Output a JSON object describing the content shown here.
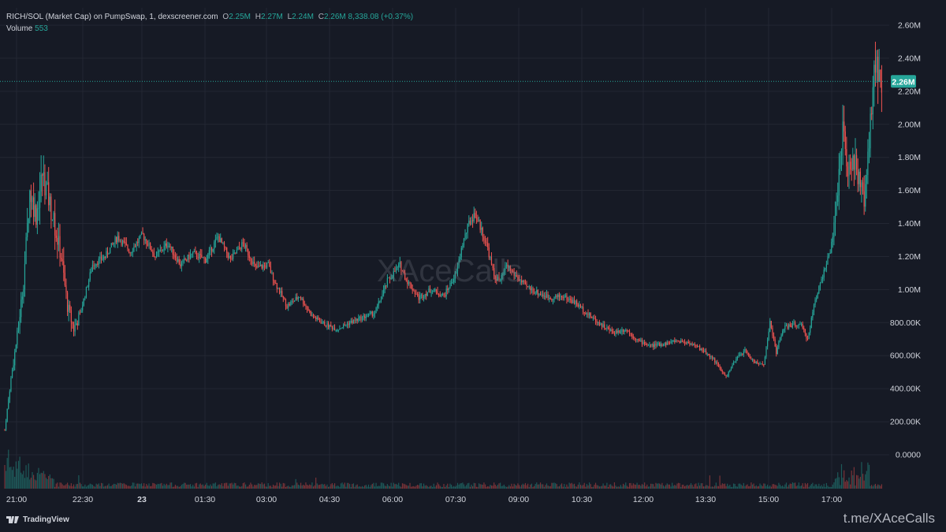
{
  "header": {
    "symbol": "RICH/SOL (Market Cap) on PumpSwap, 1, dexscreener.com",
    "o_label": "O",
    "o_value": "2.25M",
    "h_label": "H",
    "h_value": "2.27M",
    "l_label": "L",
    "l_value": "2.24M",
    "c_label": "C",
    "c_value": "2.26M",
    "change": "8,338.08 (+0.37%)",
    "volume_label": "Volume",
    "volume_value": "553"
  },
  "footer": {
    "brand": "TradingView",
    "telegram": "t.me/XAceCalls"
  },
  "watermark": "XAceCalls",
  "colors": {
    "background": "#161a25",
    "up": "#26a69a",
    "down": "#ef5350",
    "price_label_bg": "#26a69a"
  },
  "chart_data": {
    "type": "candlestick",
    "y_axis_ticks": [
      "2.60M",
      "2.40M",
      "2.20M",
      "2.00M",
      "1.80M",
      "1.60M",
      "1.40M",
      "1.20M",
      "1.00M",
      "800.00K",
      "600.00K",
      "400.00K",
      "200.00K",
      "0.0000"
    ],
    "ylim": [
      0,
      2600000
    ],
    "x_axis_ticks": [
      "21:00",
      "22:30",
      "23",
      "01:30",
      "03:00",
      "04:30",
      "06:00",
      "07:30",
      "09:00",
      "10:30",
      "12:00",
      "13:30",
      "15:00",
      "17:00"
    ],
    "last_price_label": "2.26M",
    "last_price": 2260000,
    "market_cap_path": [
      [
        0,
        150000
      ],
      [
        5,
        460000
      ],
      [
        10,
        720000
      ],
      [
        15,
        1050000
      ],
      [
        20,
        1600000
      ],
      [
        25,
        1450000
      ],
      [
        30,
        1700000
      ],
      [
        35,
        1550000
      ],
      [
        45,
        1200000
      ],
      [
        50,
        900000
      ],
      [
        55,
        760000
      ],
      [
        60,
        850000
      ],
      [
        65,
        1000000
      ],
      [
        70,
        1150000
      ],
      [
        80,
        1200000
      ],
      [
        90,
        1320000
      ],
      [
        100,
        1230000
      ],
      [
        110,
        1330000
      ],
      [
        120,
        1200000
      ],
      [
        130,
        1280000
      ],
      [
        140,
        1150000
      ],
      [
        150,
        1220000
      ],
      [
        160,
        1180000
      ],
      [
        170,
        1320000
      ],
      [
        180,
        1180000
      ],
      [
        190,
        1280000
      ],
      [
        200,
        1130000
      ],
      [
        210,
        1150000
      ],
      [
        215,
        1050000
      ],
      [
        225,
        900000
      ],
      [
        235,
        960000
      ],
      [
        245,
        840000
      ],
      [
        255,
        790000
      ],
      [
        265,
        760000
      ],
      [
        275,
        800000
      ],
      [
        285,
        830000
      ],
      [
        295,
        860000
      ],
      [
        300,
        950000
      ],
      [
        305,
        1050000
      ],
      [
        315,
        1150000
      ],
      [
        320,
        1060000
      ],
      [
        330,
        950000
      ],
      [
        340,
        1000000
      ],
      [
        350,
        960000
      ],
      [
        360,
        1100000
      ],
      [
        365,
        1280000
      ],
      [
        370,
        1400000
      ],
      [
        375,
        1460000
      ],
      [
        380,
        1360000
      ],
      [
        385,
        1250000
      ],
      [
        390,
        1080000
      ],
      [
        395,
        1050000
      ],
      [
        400,
        1150000
      ],
      [
        405,
        1100000
      ],
      [
        415,
        1020000
      ],
      [
        425,
        980000
      ],
      [
        435,
        950000
      ],
      [
        445,
        960000
      ],
      [
        455,
        920000
      ],
      [
        465,
        850000
      ],
      [
        475,
        790000
      ],
      [
        485,
        740000
      ],
      [
        495,
        760000
      ],
      [
        505,
        690000
      ],
      [
        515,
        660000
      ],
      [
        525,
        670000
      ],
      [
        535,
        690000
      ],
      [
        545,
        680000
      ],
      [
        555,
        640000
      ],
      [
        565,
        580000
      ],
      [
        570,
        520000
      ],
      [
        575,
        470000
      ],
      [
        580,
        540000
      ],
      [
        585,
        600000
      ],
      [
        590,
        630000
      ],
      [
        595,
        580000
      ],
      [
        600,
        550000
      ],
      [
        605,
        550000
      ],
      [
        610,
        800000
      ],
      [
        615,
        620000
      ],
      [
        620,
        760000
      ],
      [
        625,
        780000
      ],
      [
        630,
        790000
      ],
      [
        635,
        780000
      ],
      [
        640,
        700000
      ],
      [
        645,
        900000
      ],
      [
        650,
        1050000
      ],
      [
        655,
        1150000
      ],
      [
        660,
        1300000
      ],
      [
        665,
        1700000
      ],
      [
        668,
        1950000
      ],
      [
        672,
        1750000
      ],
      [
        676,
        1800000
      ],
      [
        680,
        1700000
      ],
      [
        685,
        1550000
      ],
      [
        688,
        1800000
      ],
      [
        691,
        2100000
      ],
      [
        694,
        2400000
      ],
      [
        697,
        2260000
      ]
    ],
    "volume_max": 553,
    "x": [
      "21:00",
      "23",
      "03:00",
      "07:30",
      "12:00",
      "15:00",
      "17:00"
    ],
    "y": [
      150000,
      1600000,
      1280000,
      1460000,
      640000,
      600000,
      2260000
    ]
  }
}
